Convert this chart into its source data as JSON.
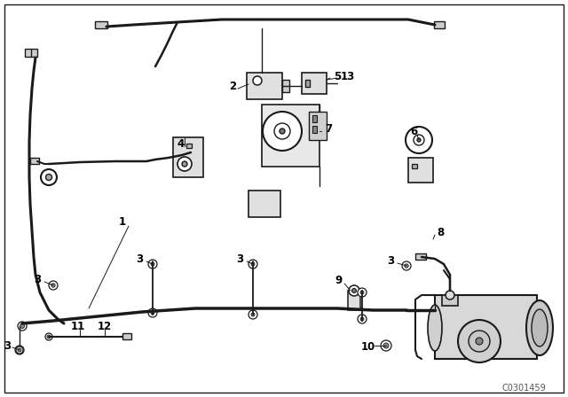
{
  "bg_color": "#ffffff",
  "line_color": "#1a1a1a",
  "text_color": "#000000",
  "watermark": "C0301459",
  "figsize": [
    6.4,
    4.48
  ],
  "dpi": 100
}
